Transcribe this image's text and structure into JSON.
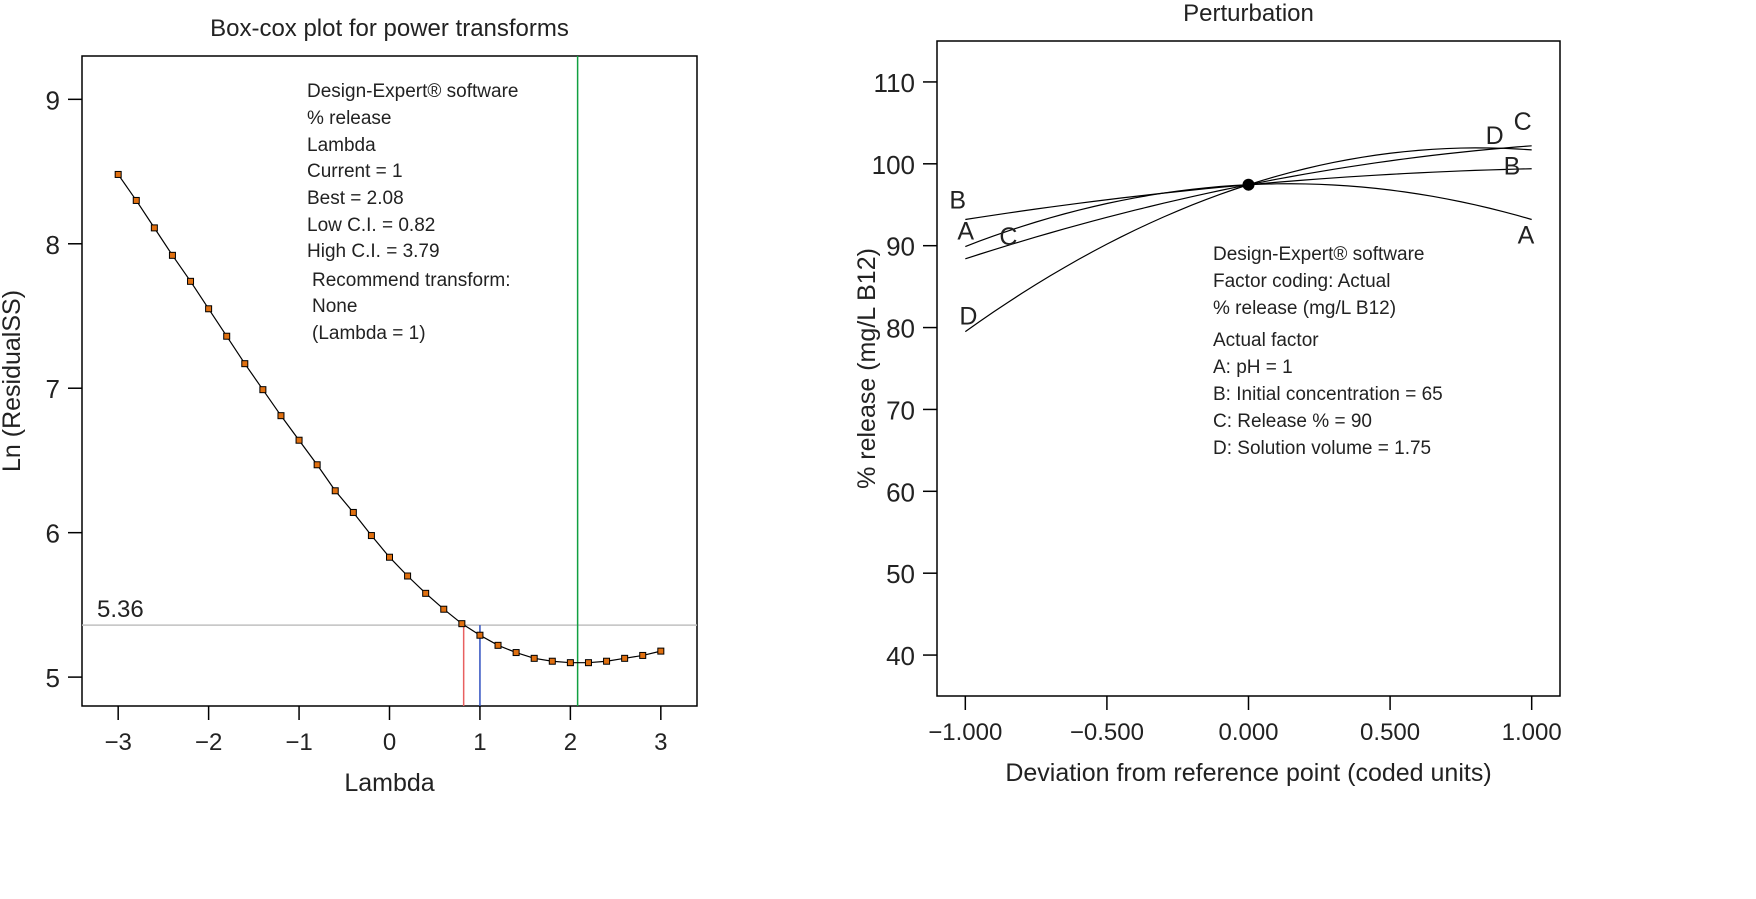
{
  "chart_data": [
    {
      "type": "line",
      "title": "Box-cox plot for power transforms",
      "xlabel": "Lambda",
      "ylabel": "Ln (ResidualSS)",
      "xlim": [
        -3.4,
        3.4
      ],
      "ylim": [
        4.8,
        9.3
      ],
      "xticks": [
        -3,
        -2,
        -1,
        0,
        1,
        2,
        3
      ],
      "xtick_labels": [
        "−3",
        "−2",
        "−1",
        "0",
        "1",
        "2",
        "3"
      ],
      "yticks": [
        5,
        6,
        7,
        8,
        9
      ],
      "ytick_labels": [
        "5",
        "6",
        "7",
        "8",
        "9"
      ],
      "x": [
        -3,
        -2.8,
        -2.6,
        -2.4,
        -2.2,
        -2,
        -1.8,
        -1.6,
        -1.4,
        -1.2,
        -1,
        -0.8,
        -0.6,
        -0.4,
        -0.2,
        0,
        0.2,
        0.4,
        0.6,
        0.8,
        1,
        1.2,
        1.4,
        1.6,
        1.8,
        2,
        2.2,
        2.4,
        2.6,
        2.8,
        3
      ],
      "y": [
        8.48,
        8.3,
        8.11,
        7.92,
        7.74,
        7.55,
        7.36,
        7.17,
        6.99,
        6.81,
        6.64,
        6.47,
        6.29,
        6.14,
        5.98,
        5.83,
        5.7,
        5.58,
        5.47,
        5.37,
        5.29,
        5.22,
        5.17,
        5.13,
        5.11,
        5.1,
        5.1,
        5.11,
        5.13,
        5.15,
        5.18
      ],
      "ci_threshold": 5.36,
      "ci_threshold_label": "5.36",
      "lines": {
        "low_ci": 0.82,
        "current": 1,
        "best": 2.08
      },
      "colors": {
        "low_ci": "#e86060",
        "current": "#3050c0",
        "best": "#10a040",
        "threshold": "#c0c0c0",
        "marker": "#e07010"
      },
      "legend": [
        "Design-Expert® software",
        "% release",
        "Lambda",
        "Current = 1",
        "Best = 2.08",
        "Low C.I. = 0.82",
        "High C.I. = 3.79",
        "Recommend transform:",
        "None",
        "(Lambda = 1)"
      ]
    },
    {
      "type": "line",
      "title": "Perturbation",
      "xlabel": "Deviation from reference point (coded units)",
      "ylabel": "% release (mg/L B12)",
      "xlim": [
        -1.1,
        1.1
      ],
      "ylim": [
        35,
        115
      ],
      "xticks": [
        -1,
        -0.5,
        0,
        0.5,
        1
      ],
      "xtick_labels": [
        "−1.000",
        "−0.500",
        "0.000",
        "0.500",
        "1.000"
      ],
      "yticks": [
        40,
        50,
        60,
        70,
        80,
        90,
        100,
        110
      ],
      "ytick_labels": [
        "40",
        "50",
        "60",
        "70",
        "80",
        "90",
        "100",
        "110"
      ],
      "reference_point": [
        0,
        97.45
      ],
      "series": [
        {
          "name": "A",
          "left": 89.9,
          "center": 97.45,
          "right": 93.2
        },
        {
          "name": "B",
          "left": 93.2,
          "center": 97.45,
          "right": 99.4
        },
        {
          "name": "C",
          "left": 88.4,
          "center": 97.45,
          "right": 102.2
        },
        {
          "name": "D",
          "left": 79.5,
          "center": 97.45,
          "right": 101.7
        }
      ],
      "legend": [
        "Design-Expert® software",
        "Factor coding: Actual",
        "% release (mg/L B12)",
        "Actual factor",
        "A: pH = 1",
        "B: Initial concentration = 65",
        "C: Release % = 90",
        "D: Solution volume = 1.75"
      ]
    }
  ]
}
